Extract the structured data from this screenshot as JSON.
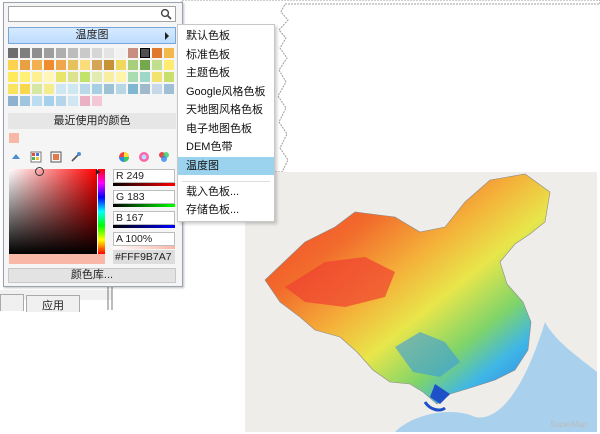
{
  "search": {
    "value": "",
    "placeholder": ""
  },
  "scheme_dropdown": {
    "label": "温度图"
  },
  "recent": {
    "label": "最近使用的颜色"
  },
  "color_values": {
    "r": "R 249",
    "g": "G 183",
    "b": "B 167",
    "a": "A 100%",
    "hex": "#FFF9B7A7"
  },
  "library_button": {
    "label": "颜色库..."
  },
  "menu": {
    "items": [
      "默认色板",
      "标准色板",
      "主题色板",
      "Google风格色板",
      "天地图风格色板",
      "电子地图色板",
      "DEM色带",
      "温度图"
    ],
    "selected_index": 7,
    "footer_items": [
      "载入色板...",
      "存储色板..."
    ]
  },
  "underlying": {
    "apply_label": "应用"
  },
  "map": {
    "watermark": "SuperMap"
  },
  "palette": {
    "rows": [
      [
        "#6d6d6d",
        "#7f7f7f",
        "#8f8f8f",
        "#9e9e9e",
        "#aeaeae",
        "#bcbcbc",
        "#c9c9c9",
        "#d6d6d6",
        "#e4e4e4",
        "#f2f2f2",
        "#c88f80",
        "#4f4f4f",
        "#e0782e",
        "#f2b84a"
      ],
      [
        "#fcd24f",
        "#e9a042",
        "#f2b04f",
        "#ef8d2e",
        "#f0a64d",
        "#e7c25a",
        "#fbdc7a",
        "#d5a457",
        "#c79236",
        "#f0d85c",
        "#a8cf7a",
        "#74a84c",
        "#c2df8d",
        "#ffeb6f"
      ],
      [
        "#ffe95c",
        "#fff176",
        "#fdf091",
        "#fff6b7",
        "#e8e56b",
        "#dbe38e",
        "#c2e36b",
        "#e2ecb0",
        "#f6efa0",
        "#fff4a8",
        "#a9dcb0",
        "#9fd7c6",
        "#f0e36f",
        "#c8df6c"
      ],
      [
        "#f9e45d",
        "#f7d84a",
        "#d6e7a2",
        "#f5ec8c",
        "#cfe7f2",
        "#cde8f1",
        "#b7d9e9",
        "#a7cfe3",
        "#9cc3d5",
        "#b8d6e4",
        "#7fb6d0",
        "#9fbacc",
        "#c7d9e8",
        "#9fbfd6"
      ],
      [
        "#8cb2cf",
        "#a0c5de",
        "#bcdcef",
        "#a6d1ec",
        "#b5d6ea",
        "#d0e6f3",
        "#eab1c5",
        "#f3c8d4",
        "",
        "",
        "",
        "",
        "",
        ""
      ]
    ],
    "selected": "#4f4f4f"
  }
}
